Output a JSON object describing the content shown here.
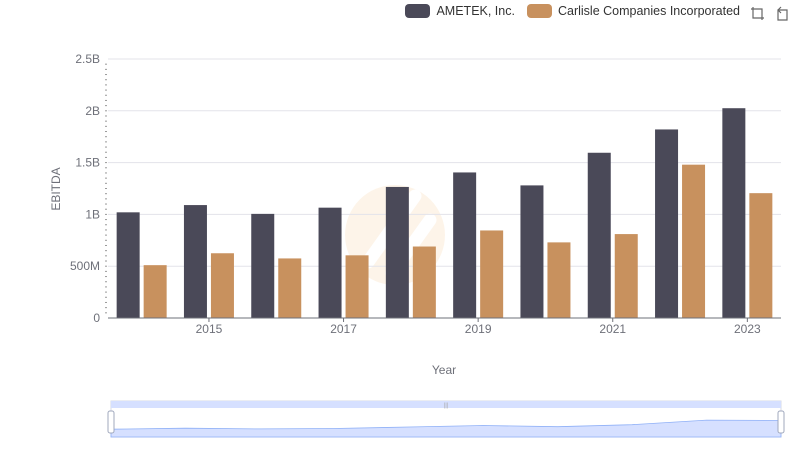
{
  "colors": {
    "ametek": "#4a4958",
    "carlisle": "#c8915e",
    "grid": "#e3e3ea",
    "axis": "#6e7079",
    "slider_fill": "#d6e0ff",
    "slider_border": "#c6d0e8",
    "slider_line": "#8fb0f7"
  },
  "legend": {
    "items": [
      {
        "label": "AMETEK, Inc.",
        "color": "#4a4958"
      },
      {
        "label": "Carlisle Companies Incorporated",
        "color": "#c8915e"
      }
    ]
  },
  "toolbox": {
    "icons": [
      "zoom-icon",
      "restore-icon"
    ]
  },
  "chart_data": {
    "type": "bar",
    "categories": [
      "2014",
      "2015",
      "2016",
      "2017",
      "2018",
      "2019",
      "2020",
      "2021",
      "2022",
      "2023"
    ],
    "x_tick_labels": [
      "2015",
      "2017",
      "2019",
      "2021",
      "2023"
    ],
    "series": [
      {
        "name": "AMETEK, Inc.",
        "values": [
          1020000000,
          1090000000,
          1005000000,
          1065000000,
          1265000000,
          1405000000,
          1280000000,
          1595000000,
          1820000000,
          2025000000
        ]
      },
      {
        "name": "Carlisle Companies Incorporated",
        "values": [
          510000000,
          625000000,
          575000000,
          605000000,
          690000000,
          845000000,
          730000000,
          810000000,
          1480000000,
          1205000000
        ]
      }
    ],
    "xlabel": "Year",
    "ylabel": "EBITDA",
    "ylim": [
      0,
      2500000000
    ],
    "y_ticks": [
      {
        "value": 0,
        "label": "0"
      },
      {
        "value": 500000000,
        "label": "500M"
      },
      {
        "value": 1000000000,
        "label": "1B"
      },
      {
        "value": 1500000000,
        "label": "1.5B"
      },
      {
        "value": 2000000000,
        "label": "2B"
      },
      {
        "value": 2500000000,
        "label": "2.5B"
      }
    ],
    "grid": true,
    "legend_position": "top-right"
  }
}
